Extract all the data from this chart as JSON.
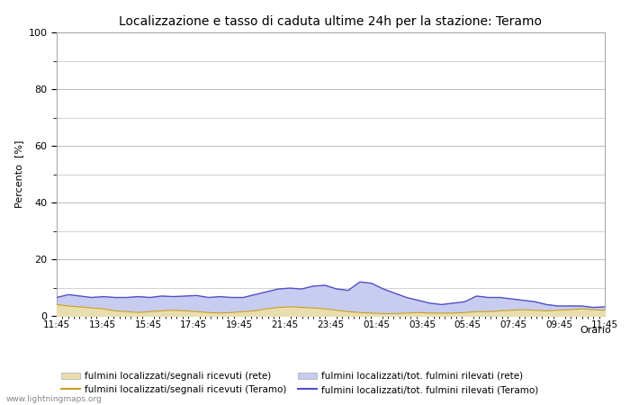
{
  "title": "Localizzazione e tasso di caduta ultime 24h per la stazione: Teramo",
  "ylabel": "Percento  [%]",
  "xlabel": "Orario",
  "ylim": [
    0,
    100
  ],
  "yticks": [
    0,
    20,
    40,
    60,
    80,
    100
  ],
  "yticks_minor": [
    10,
    30,
    50,
    70,
    90
  ],
  "x_labels": [
    "11:45",
    "13:45",
    "15:45",
    "17:45",
    "19:45",
    "21:45",
    "23:45",
    "01:45",
    "03:45",
    "05:45",
    "07:45",
    "09:45",
    "11:45"
  ],
  "color_fill_rete": "#e8deb0",
  "color_fill_teramo": "#c8ccf0",
  "color_line_rete": "#c8a020",
  "color_line_teramo": "#5050c8",
  "background_color": "#ffffff",
  "plot_bg_color": "#ffffff",
  "grid_color": "#c0c0c0",
  "watermark": "www.lightningmaps.org",
  "legend_labels": [
    "fulmini localizzati/segnali ricevuti (rete)",
    "fulmini localizzati/segnali ricevuti (Teramo)",
    "fulmini localizzati/tot. fulmini rilevati (rete)",
    "fulmini localizzati/tot. fulmini rilevati (Teramo)"
  ],
  "fill_rete_values": [
    4.0,
    3.5,
    3.2,
    2.8,
    2.5,
    1.8,
    1.5,
    1.2,
    1.5,
    1.8,
    2.0,
    1.8,
    1.5,
    1.2,
    1.0,
    1.2,
    1.5,
    1.8,
    2.5,
    3.0,
    3.2,
    3.0,
    2.8,
    2.5,
    2.0,
    1.5,
    1.2,
    1.0,
    0.8,
    0.8,
    1.0,
    1.2,
    1.0,
    1.0,
    1.0,
    1.2,
    1.5,
    1.5,
    1.8,
    2.0,
    2.2,
    2.0,
    1.8,
    2.0,
    2.2,
    2.5,
    2.2,
    2.0
  ],
  "fill_teramo_values": [
    6.5,
    7.5,
    7.0,
    6.5,
    6.8,
    6.5,
    6.5,
    6.8,
    6.5,
    7.0,
    6.8,
    7.0,
    7.2,
    6.5,
    6.8,
    6.5,
    6.5,
    7.5,
    8.5,
    9.5,
    9.8,
    9.5,
    10.5,
    10.8,
    9.5,
    9.0,
    12.0,
    11.5,
    9.5,
    8.0,
    6.5,
    5.5,
    4.5,
    4.0,
    4.5,
    5.0,
    7.0,
    6.5,
    6.5,
    6.0,
    5.5,
    5.0,
    4.0,
    3.5,
    3.5,
    3.5,
    3.0,
    3.2
  ]
}
